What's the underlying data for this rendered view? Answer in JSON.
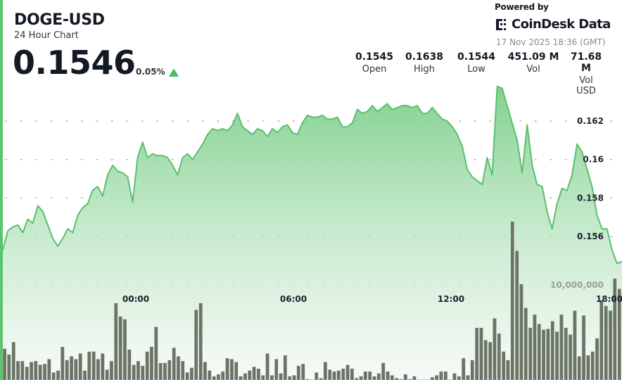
{
  "header": {
    "symbol": "DOGE-USD",
    "subtitle": "24 Hour Chart",
    "price": "0.1546",
    "change": "0.05%",
    "change_direction": "up",
    "powered_by": "Powered by",
    "brand": "CoinDesk Data",
    "timestamp": "17 Nov 2025 18:36 (GMT)"
  },
  "stats": [
    {
      "value": "0.1545",
      "label": "Open"
    },
    {
      "value": "0.1638",
      "label": "High"
    },
    {
      "value": "0.1544",
      "label": "Low"
    },
    {
      "value": "451.09 M",
      "label": "Vol"
    },
    {
      "value": "71.68 M",
      "label": "Vol USD"
    }
  ],
  "colors": {
    "accent": "#5cc46c",
    "line": "#5bbf6e",
    "volume_bar": "#6b7566",
    "up": "#4cbb64"
  },
  "chart_data": {
    "type": "area",
    "grid": true,
    "price_axis": {
      "ticks": [
        "0.162",
        "0.16",
        "0.158",
        "0.156"
      ],
      "tick_values": [
        0.162,
        0.16,
        0.158,
        0.156
      ]
    },
    "volume_axis": {
      "ticks": [
        "10,000,000"
      ],
      "tick_values": [
        10000000
      ]
    },
    "x_ticks": [
      "00:00",
      "06:00",
      "12:00",
      "18:00"
    ],
    "price": [
      0.1553,
      0.1563,
      0.1565,
      0.1566,
      0.1562,
      0.1569,
      0.1567,
      0.1576,
      0.1573,
      0.1566,
      0.1559,
      0.1555,
      0.1559,
      0.1564,
      0.1562,
      0.1571,
      0.1575,
      0.1577,
      0.1584,
      0.1586,
      0.1581,
      0.1592,
      0.1597,
      0.1594,
      0.1593,
      0.1591,
      0.1578,
      0.1601,
      0.1609,
      0.1601,
      0.1603,
      0.1602,
      0.1602,
      0.1601,
      0.1597,
      0.1592,
      0.1601,
      0.1603,
      0.16,
      0.1604,
      0.1608,
      0.1613,
      0.1616,
      0.1615,
      0.1616,
      0.1615,
      0.1618,
      0.1624,
      0.1617,
      0.1615,
      0.1613,
      0.1616,
      0.1615,
      0.1612,
      0.1616,
      0.1614,
      0.1617,
      0.1618,
      0.1614,
      0.1613,
      0.1619,
      0.1623,
      0.1622,
      0.1622,
      0.1623,
      0.1621,
      0.1621,
      0.1622,
      0.1617,
      0.1617,
      0.1619,
      0.1626,
      0.1624,
      0.1625,
      0.1628,
      0.1625,
      0.1627,
      0.1629,
      0.1626,
      0.1627,
      0.1628,
      0.1628,
      0.1627,
      0.1628,
      0.1624,
      0.1624,
      0.1627,
      0.1624,
      0.1621,
      0.162,
      0.1617,
      0.1613,
      0.1607,
      0.1595,
      0.1591,
      0.1589,
      0.1587,
      0.1601,
      0.1592,
      0.1638,
      0.1637,
      0.1628,
      0.1619,
      0.161,
      0.1593,
      0.1618,
      0.1597,
      0.1587,
      0.1586,
      0.1573,
      0.1564,
      0.1577,
      0.1585,
      0.1584,
      0.1592,
      0.1608,
      0.1604,
      0.1595,
      0.1586,
      0.1571,
      0.1564,
      0.1564,
      0.1553,
      0.1546,
      0.1547
    ],
    "volume_millions": [
      3.3,
      2.7,
      4.0,
      2.0,
      2.0,
      1.4,
      1.9,
      2.0,
      1.6,
      1.7,
      2.2,
      0.8,
      1.0,
      3.5,
      2.1,
      2.5,
      2.2,
      2.8,
      1.0,
      3.0,
      3.0,
      2.2,
      2.8,
      1.1,
      2.0,
      8.1,
      6.7,
      6.4,
      3.2,
      1.6,
      2.0,
      1.5,
      3.0,
      3.5,
      5.6,
      1.8,
      1.8,
      2.1,
      3.4,
      2.5,
      2.0,
      0.8,
      1.3,
      7.4,
      8.1,
      1.9,
      1.0,
      0.4,
      0.6,
      0.9,
      2.3,
      2.2,
      1.9,
      0.4,
      0.7,
      1.0,
      1.4,
      1.2,
      0.5,
      2.8,
      0.5,
      2.2,
      0.7,
      2.6,
      0.4,
      0.5,
      1.5,
      1.7,
      0.1,
      0.05,
      0.8,
      0.2,
      1.9,
      1.1,
      0.9,
      1.0,
      1.2,
      1.6,
      1.2,
      0.2,
      0.4,
      0.9,
      0.9,
      0.4,
      0.7,
      1.8,
      0.9,
      0.5,
      0.2,
      0.1,
      0.6,
      0.1,
      0.4,
      0.05,
      0.05,
      0.05,
      0.3,
      0.5,
      0.9,
      0.9,
      0.05,
      0.7,
      0.4,
      2.3,
      0.5,
      2.1,
      5.5,
      5.5,
      4.2,
      4.0,
      6.5,
      4.9,
      3.0,
      2.1,
      16.7,
      13.6,
      10.1,
      7.6,
      5.5,
      6.9,
      5.9,
      5.3,
      5.4,
      6.2,
      5.1,
      6.9,
      5.5,
      4.8,
      7.3,
      2.5,
      6.8,
      2.6,
      3.0,
      4.4,
      8.4,
      7.8,
      7.3,
      10.7,
      9.6
    ]
  }
}
